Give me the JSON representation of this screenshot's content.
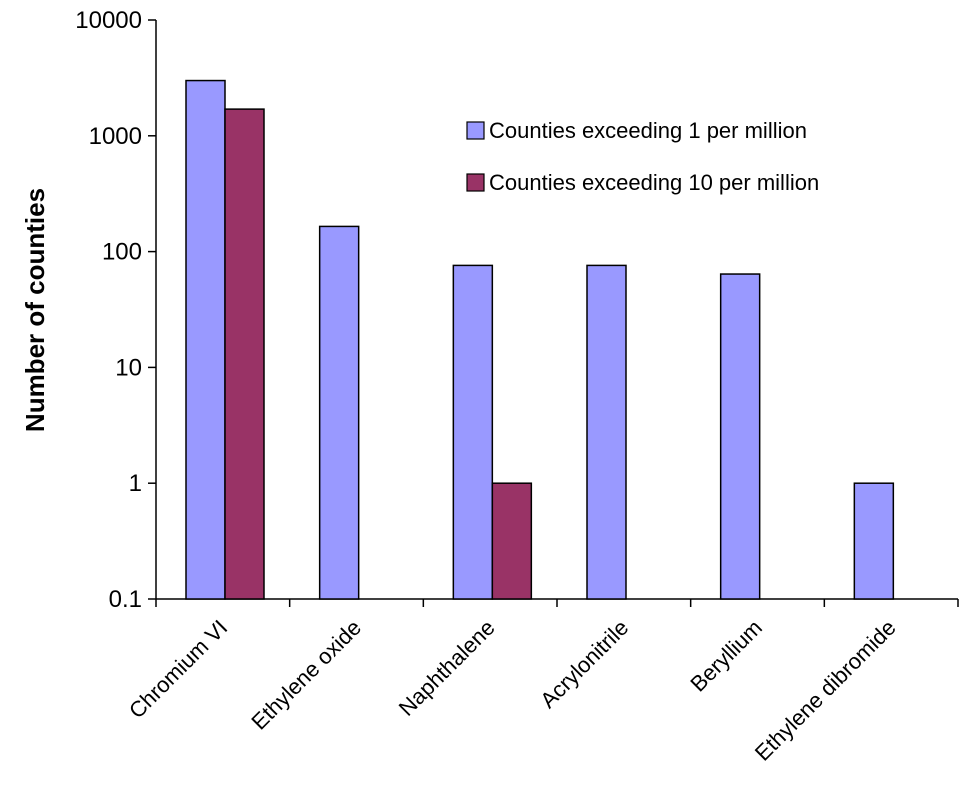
{
  "chart_data": {
    "type": "bar",
    "title": "",
    "xlabel": "",
    "ylabel": "Number of counties",
    "yscale": "log",
    "ylim": [
      0.1,
      10000
    ],
    "yticks": [
      "0.1",
      "1",
      "10",
      "100",
      "1000",
      "10000"
    ],
    "grid": false,
    "legend_position": "top-right",
    "categories": [
      "Chromium VI",
      "Ethylene oxide",
      "Naphthalene",
      "Acrylonitrile",
      "Beryllium",
      "Ethylene dibromide"
    ],
    "series": [
      {
        "name": "Counties exceeding 1 per million",
        "color": "#9999ff",
        "values": [
          3000,
          165,
          76,
          76,
          64,
          1
        ]
      },
      {
        "name": "Counties exceeding 10 per million",
        "color": "#993366",
        "values": [
          1700,
          null,
          1,
          null,
          null,
          null
        ]
      }
    ]
  }
}
